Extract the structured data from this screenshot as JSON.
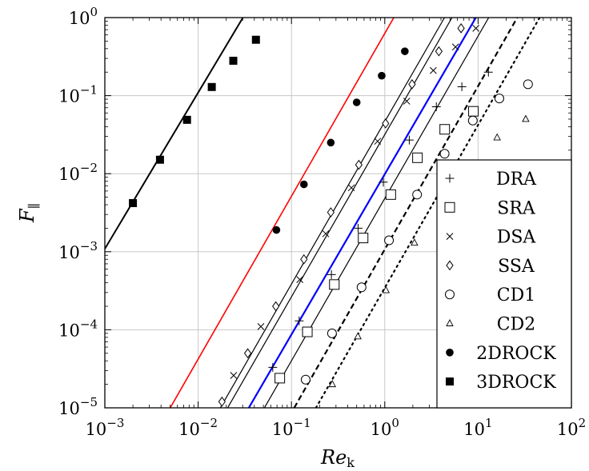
{
  "chart_data": {
    "type": "scatter",
    "xscale": "log",
    "yscale": "log",
    "xlim": [
      0.001,
      100
    ],
    "ylim": [
      1e-05,
      1
    ],
    "xlabel": "Re",
    "xlabel_sub": "k",
    "ylabel": "F",
    "ylabel_sub": "∥",
    "grid": true,
    "legend_position": "bottom-right",
    "xticks": [
      {
        "base": "10",
        "exp": "−3"
      },
      {
        "base": "10",
        "exp": "−2"
      },
      {
        "base": "10",
        "exp": "−1"
      },
      {
        "base": "10",
        "exp": "0"
      },
      {
        "base": "10",
        "exp": "1"
      },
      {
        "base": "10",
        "exp": "2"
      }
    ],
    "yticks": [
      {
        "base": "10",
        "exp": "−5"
      },
      {
        "base": "10",
        "exp": "−4"
      },
      {
        "base": "10",
        "exp": "−3"
      },
      {
        "base": "10",
        "exp": "−2"
      },
      {
        "base": "10",
        "exp": "−1"
      },
      {
        "base": "10",
        "exp": "0"
      }
    ],
    "series": [
      {
        "name": "DRA",
        "marker": "plus",
        "color": "#000000",
        "points": [
          [
            0.063,
            3.3e-05
          ],
          [
            0.121,
            0.00013
          ],
          [
            0.268,
            0.00051
          ],
          [
            0.518,
            0.002
          ],
          [
            0.965,
            0.0078
          ],
          [
            1.83,
            0.027
          ],
          [
            3.57,
            0.072
          ],
          [
            6.7,
            0.13
          ],
          [
            12.9,
            0.2
          ]
        ]
      },
      {
        "name": "SRA",
        "marker": "square",
        "color": "#000000",
        "points": [
          [
            0.075,
            2.4e-05
          ],
          [
            0.148,
            9.4e-05
          ],
          [
            0.288,
            0.00038
          ],
          [
            0.586,
            0.0015
          ],
          [
            1.16,
            0.0054
          ],
          [
            2.24,
            0.016
          ],
          [
            4.39,
            0.037
          ],
          [
            8.91,
            0.063
          ]
        ]
      },
      {
        "name": "DSA",
        "marker": "x",
        "color": "#000000",
        "points": [
          [
            0.024,
            2.6e-05
          ],
          [
            0.047,
            0.00011
          ],
          [
            0.123,
            0.00044
          ],
          [
            0.233,
            0.0017
          ],
          [
            0.439,
            0.0066
          ],
          [
            0.838,
            0.026
          ],
          [
            1.72,
            0.085
          ],
          [
            3.31,
            0.21
          ],
          [
            5.73,
            0.42
          ],
          [
            9.47,
            0.73
          ]
        ]
      },
      {
        "name": "SSA",
        "marker": "diamond",
        "color": "#000000",
        "points": [
          [
            0.018,
            1.2e-05
          ],
          [
            0.034,
            5e-05
          ],
          [
            0.068,
            0.0002
          ],
          [
            0.136,
            0.0008
          ],
          [
            0.264,
            0.0032
          ],
          [
            0.527,
            0.013
          ],
          [
            1.02,
            0.044
          ],
          [
            1.96,
            0.14
          ],
          [
            3.8,
            0.37
          ],
          [
            6.57,
            0.73
          ]
        ]
      },
      {
        "name": "CD1",
        "marker": "circle",
        "color": "#000000",
        "points": [
          [
            0.142,
            2.3e-05
          ],
          [
            0.272,
            9e-05
          ],
          [
            0.564,
            0.00035
          ],
          [
            1.11,
            0.0014
          ],
          [
            2.22,
            0.0054
          ],
          [
            4.38,
            0.018
          ],
          [
            8.78,
            0.048
          ],
          [
            16.9,
            0.092
          ],
          [
            34.3,
            0.14
          ]
        ]
      },
      {
        "name": "CD2",
        "marker": "triangle",
        "color": "#000000",
        "points": [
          [
            0.274,
            2e-05
          ],
          [
            0.515,
            8.2e-05
          ],
          [
            1.03,
            0.00032
          ],
          [
            2.08,
            0.0013
          ],
          [
            4.14,
            0.0038
          ],
          [
            7.96,
            0.012
          ],
          [
            16.0,
            0.029
          ],
          [
            32.4,
            0.05
          ]
        ]
      },
      {
        "name": "2DROCK",
        "marker": "filled-circle",
        "color": "#000000",
        "points": [
          [
            0.069,
            0.0019
          ],
          [
            0.136,
            0.0073
          ],
          [
            0.264,
            0.025
          ],
          [
            0.5,
            0.082
          ],
          [
            0.927,
            0.18
          ],
          [
            1.64,
            0.37
          ]
        ]
      },
      {
        "name": "3DROCK",
        "marker": "filled-square",
        "color": "#000000",
        "points": [
          [
            0.002,
            0.0042
          ],
          [
            0.0039,
            0.0151
          ],
          [
            0.0076,
            0.049
          ],
          [
            0.014,
            0.129
          ],
          [
            0.0238,
            0.28
          ],
          [
            0.0416,
            0.52
          ]
        ]
      }
    ],
    "lines": [
      {
        "color": "#000000",
        "style": "solid",
        "points": [
          [
            0.001,
            0.00109
          ],
          [
            0.0302,
            1.0
          ]
        ]
      },
      {
        "color": "#ff0000",
        "style": "solid",
        "points": [
          [
            0.00502,
            1e-05
          ],
          [
            1.25,
            1.0
          ]
        ]
      },
      {
        "color": "#000000",
        "style": "solid",
        "points": [
          [
            0.0173,
            1e-05
          ],
          [
            4.37,
            1.0
          ]
        ]
      },
      {
        "color": "#000000",
        "style": "solid",
        "points": [
          [
            0.0207,
            1e-05
          ],
          [
            5.26,
            1.0
          ]
        ]
      },
      {
        "color": "#0000ff",
        "style": "solid",
        "points": [
          [
            0.0349,
            1e-05
          ],
          [
            9.47,
            1.0
          ]
        ]
      },
      {
        "color": "#000000",
        "style": "solid",
        "points": [
          [
            0.0513,
            1e-05
          ],
          [
            13.0,
            1.0
          ]
        ]
      },
      {
        "color": "#000000",
        "style": "dashed",
        "points": [
          [
            0.107,
            1e-05
          ],
          [
            26.3,
            1.0
          ]
        ]
      },
      {
        "color": "#000000",
        "style": "dotted",
        "points": [
          [
            0.183,
            1e-05
          ],
          [
            45.7,
            1.0
          ]
        ]
      }
    ]
  }
}
